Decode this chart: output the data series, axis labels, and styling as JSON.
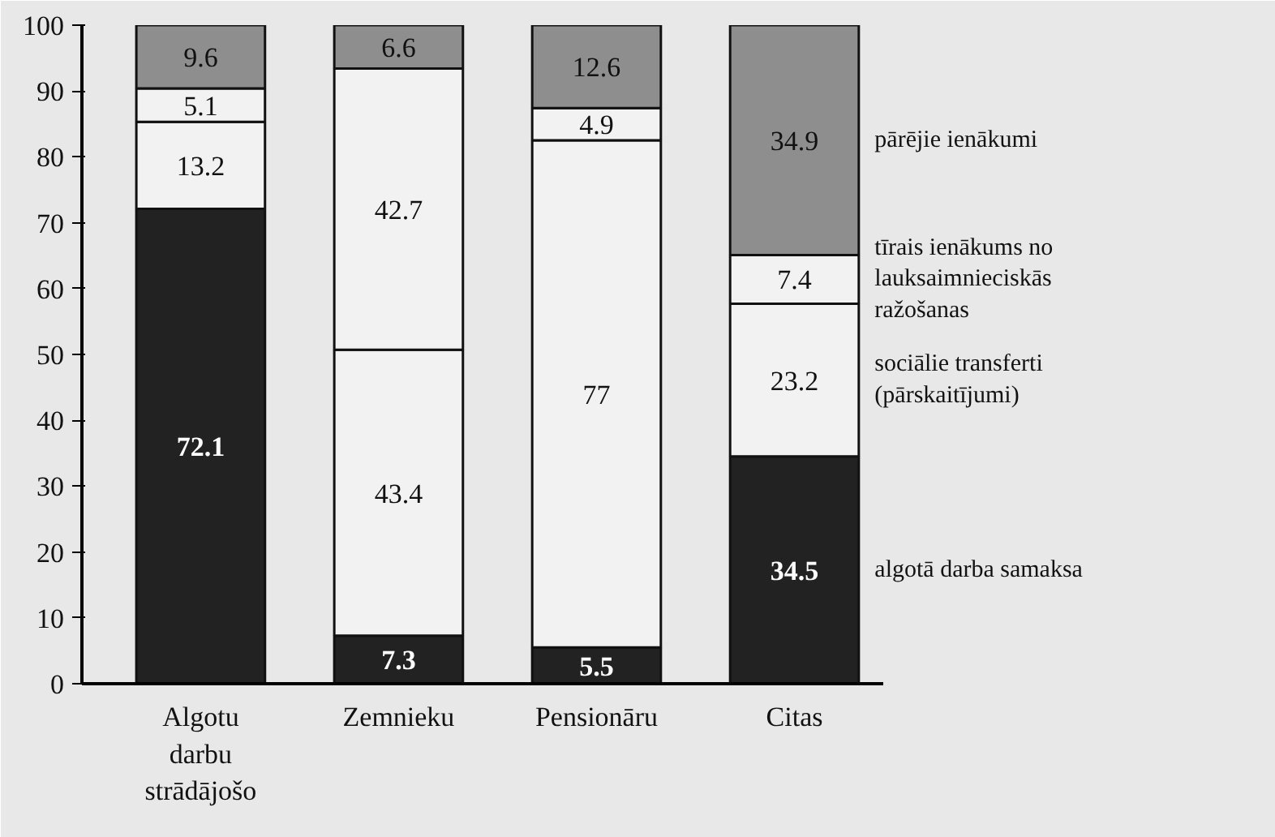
{
  "chart_data": {
    "type": "bar",
    "stacked": true,
    "categories": [
      "Algotu darbu strādājošo",
      "Zemnieku",
      "Pensionāru",
      "Citas"
    ],
    "series": [
      {
        "name": "algotā darba samaksa",
        "color": "#222222",
        "values": [
          72.1,
          7.3,
          5.5,
          34.5
        ]
      },
      {
        "name": "sociālie transferti (pārskaitījumi)",
        "color": "#f2f2f2",
        "values": [
          13.2,
          43.4,
          77,
          23.2
        ]
      },
      {
        "name": "tīrais ienākums no lauksaimnieciskās ražošanas",
        "color": "#f2f2f2",
        "values": [
          5.1,
          42.7,
          4.9,
          7.4
        ]
      },
      {
        "name": "pārējie ienākumi",
        "color": "#8e8e8e",
        "values": [
          9.6,
          6.6,
          12.6,
          34.9
        ]
      }
    ],
    "ylim": [
      0,
      100
    ],
    "yticks": [
      0,
      10,
      20,
      30,
      40,
      50,
      60,
      70,
      80,
      90,
      100
    ],
    "data_labels": true
  }
}
